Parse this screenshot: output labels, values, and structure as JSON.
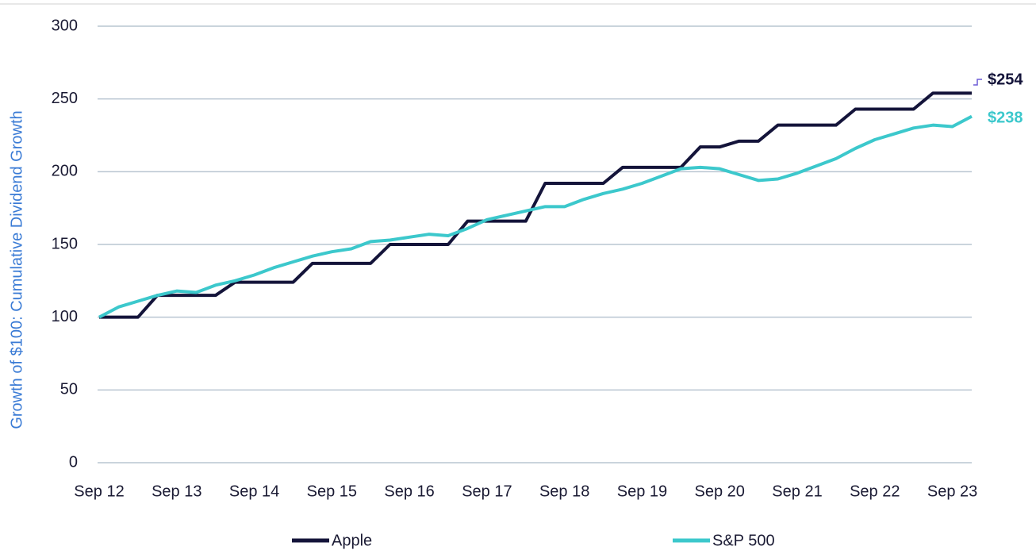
{
  "chart_data": {
    "type": "line",
    "y_label": "Growth of $100: Cumulative Dividend Growth",
    "categories": [
      "Sep 12",
      null,
      null,
      null,
      "Sep 13",
      null,
      null,
      null,
      "Sep 14",
      null,
      null,
      null,
      "Sep 15",
      null,
      null,
      null,
      "Sep 16",
      null,
      null,
      null,
      "Sep 17",
      null,
      null,
      null,
      "Sep 18",
      null,
      null,
      null,
      "Sep 19",
      null,
      null,
      null,
      "Sep 20",
      null,
      null,
      null,
      "Sep 21",
      null,
      null,
      null,
      "Sep 22",
      null,
      null,
      null,
      "Sep 23",
      null
    ],
    "series": [
      {
        "name": "Apple",
        "color": "#14143a",
        "end_label": "$254",
        "values": [
          100,
          100,
          100,
          115,
          115,
          115,
          115,
          124,
          124,
          124,
          124,
          137,
          137,
          137,
          137,
          150,
          150,
          150,
          150,
          166,
          166,
          166,
          166,
          192,
          192,
          192,
          192,
          203,
          203,
          203,
          203,
          217,
          217,
          221,
          221,
          232,
          232,
          232,
          232,
          243,
          243,
          243,
          243,
          254,
          254,
          254
        ]
      },
      {
        "name": "S&P 500",
        "color": "#3cc8cc",
        "end_label": "$238",
        "values": [
          100,
          107,
          111,
          115,
          118,
          117,
          122,
          125,
          129,
          134,
          138,
          142,
          145,
          147,
          152,
          153,
          155,
          157,
          156,
          161,
          167,
          170,
          173,
          176,
          176,
          181,
          185,
          188,
          192,
          197,
          202,
          203,
          202,
          198,
          194,
          195,
          199,
          204,
          209,
          216,
          222,
          226,
          230,
          232,
          231,
          238
        ]
      }
    ],
    "ylim": [
      0,
      300
    ],
    "yticks": [
      0,
      50,
      100,
      150,
      200,
      250,
      300
    ],
    "grid": true,
    "legend": "bottom"
  }
}
